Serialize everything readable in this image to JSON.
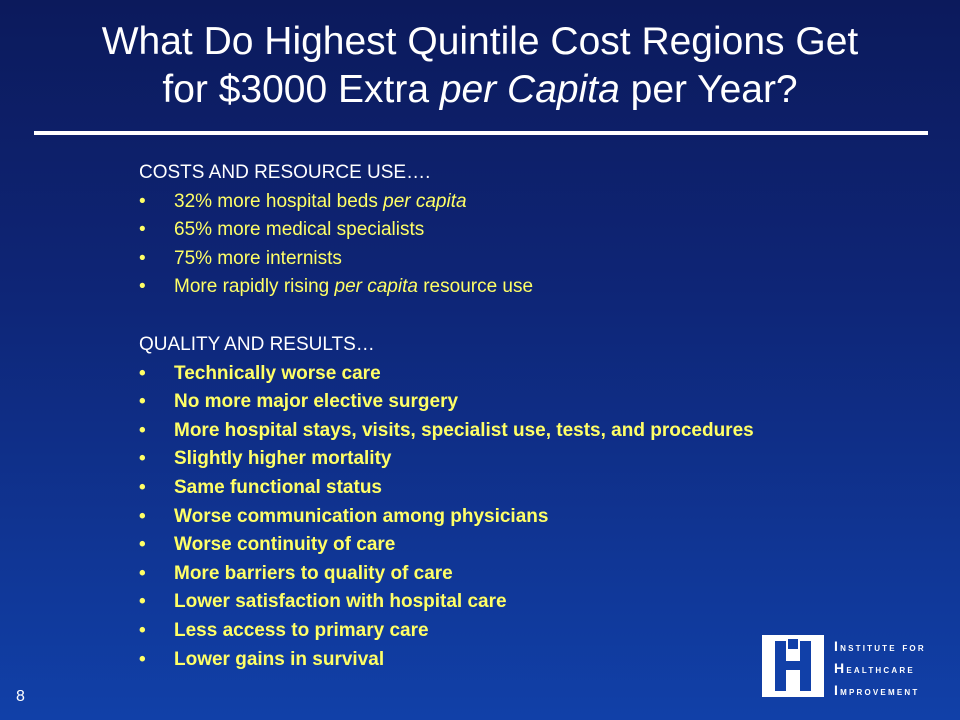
{
  "slide": {
    "title_line1": "What Do Highest Quintile Cost Regions Get",
    "title_line2_a": "for $3000 Extra ",
    "title_line2_em": "per Capita",
    "title_line2_b": " per Year?",
    "page_number": "8"
  },
  "costs": {
    "heading": "COSTS AND RESOURCE USE….",
    "items": [
      {
        "pre": "32% more hospital beds ",
        "em": "per capita",
        "post": ""
      },
      {
        "pre": "65% more medical specialists",
        "em": "",
        "post": ""
      },
      {
        "pre": "75% more internists",
        "em": "",
        "post": ""
      },
      {
        "pre": "More rapidly rising ",
        "em": "per capita",
        "post": " resource use"
      }
    ]
  },
  "quality": {
    "heading": "QUALITY AND RESULTS…",
    "items": [
      "Technically worse care",
      "No more major elective surgery",
      "More hospital stays, visits, specialist use, tests, and procedures",
      "Slightly higher mortality",
      "Same functional status",
      "Worse communication among physicians",
      "Worse continuity of care",
      "More barriers to quality of care",
      "Lower satisfaction with hospital care",
      "Less access to primary care",
      "Lower gains in survival"
    ]
  },
  "logo": {
    "line1": "Institute for",
    "line2": "Healthcare",
    "line3": "Improvement"
  },
  "bullet_char": "•",
  "colors": {
    "background_top": "#0c1a5c",
    "background_bottom": "#1140a8",
    "bullet_text": "#ffff66",
    "heading_text": "#ffffff"
  }
}
